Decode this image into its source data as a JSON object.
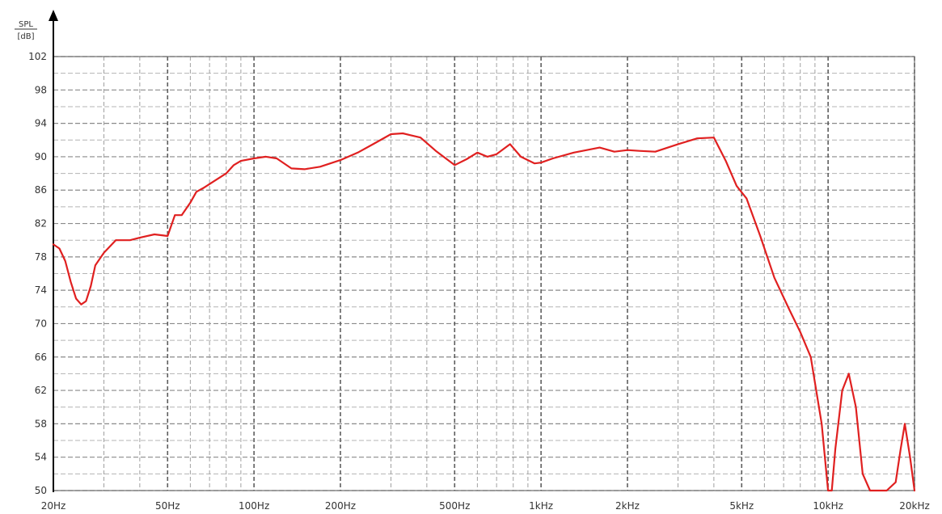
{
  "chart_data": {
    "type": "line",
    "title": "",
    "xlabel": "",
    "ylabel": "SPL",
    "yunit": "dB",
    "xscale": "log",
    "xlim": [
      20,
      20000
    ],
    "ylim": [
      50,
      102
    ],
    "grid": true,
    "yticks": [
      50,
      54,
      58,
      62,
      66,
      70,
      74,
      78,
      82,
      86,
      90,
      94,
      98,
      102
    ],
    "xticks": [
      {
        "value": 20,
        "label": "20Hz"
      },
      {
        "value": 50,
        "label": "50Hz"
      },
      {
        "value": 100,
        "label": "100Hz"
      },
      {
        "value": 200,
        "label": "200Hz"
      },
      {
        "value": 500,
        "label": "500Hz"
      },
      {
        "value": 1000,
        "label": "1kHz"
      },
      {
        "value": 2000,
        "label": "2kHz"
      },
      {
        "value": 5000,
        "label": "5kHz"
      },
      {
        "value": 10000,
        "label": "10kHz"
      },
      {
        "value": 20000,
        "label": "20kHz"
      }
    ],
    "color": "#e02020",
    "series": [
      {
        "x": [
          20,
          21,
          22,
          23,
          24,
          25,
          26,
          27,
          28,
          30,
          33,
          37,
          40,
          45,
          50,
          53,
          56,
          60,
          63,
          67,
          72,
          80,
          85,
          90,
          100,
          110,
          120,
          135,
          150,
          170,
          200,
          230,
          260,
          300,
          330,
          380,
          430,
          500,
          550,
          600,
          650,
          700,
          780,
          850,
          950,
          1000,
          1100,
          1300,
          1600,
          1800,
          2000,
          2200,
          2500,
          3000,
          3500,
          4000,
          4400,
          4800,
          5200,
          5800,
          6500,
          7300,
          8000,
          8700,
          9500,
          10000,
          10300,
          10600,
          11200,
          11800,
          12500,
          13200,
          14000,
          15000,
          16000,
          17200,
          17900,
          18500,
          19300,
          20000
        ],
        "y": [
          79.5,
          79.0,
          77.5,
          75.0,
          73.0,
          72.3,
          72.7,
          74.5,
          77.0,
          78.5,
          80.0,
          80.0,
          80.3,
          80.7,
          80.5,
          83.0,
          83.0,
          84.5,
          85.8,
          86.3,
          87.0,
          88.0,
          89.0,
          89.5,
          89.8,
          90.0,
          89.8,
          88.6,
          88.5,
          88.8,
          89.6,
          90.5,
          91.5,
          92.7,
          92.8,
          92.3,
          90.7,
          89.0,
          89.7,
          90.5,
          90.0,
          90.3,
          91.5,
          90.0,
          89.2,
          89.3,
          89.8,
          90.5,
          91.1,
          90.6,
          90.8,
          90.7,
          90.6,
          91.5,
          92.2,
          92.3,
          89.5,
          86.5,
          85.0,
          80.5,
          75.5,
          71.8,
          69.0,
          66.0,
          58.0,
          50.0,
          50.0,
          55.0,
          62.0,
          64.0,
          60.0,
          52.0,
          50.0,
          50.0,
          50.0,
          51.0,
          55.0,
          58.0,
          54.0,
          50.0
        ]
      }
    ]
  }
}
